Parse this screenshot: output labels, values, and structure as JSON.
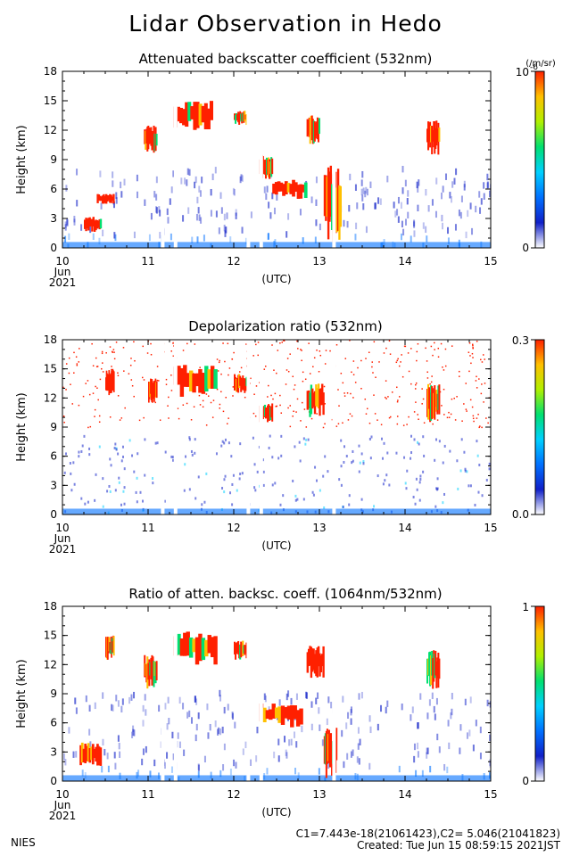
{
  "title": "Lidar Observation in Hedo",
  "footer": {
    "org": "NIES",
    "calib": "C1=7.443e-18(21061423),C2= 5.046(21041823)",
    "created": "Created: Tue Jun 15 08:59:15 2021JST"
  },
  "colors": {
    "cmap": [
      "#ffffff",
      "#1020c8",
      "#0070ff",
      "#00d0ff",
      "#00e070",
      "#b0f000",
      "#ffc000",
      "#ff2000"
    ]
  },
  "chart_data": [
    {
      "type": "heatmap",
      "title": "Attenuated backscatter coefficient (532nm)",
      "ylabel": "Height (km)",
      "xlabel": "(UTC)",
      "ylim": [
        0,
        18
      ],
      "xlim": [
        10,
        15
      ],
      "yticks": [
        "0",
        "3",
        "6",
        "9",
        "12",
        "15",
        "18"
      ],
      "xticks": [
        "10",
        "11",
        "12",
        "13",
        "14",
        "15"
      ],
      "date_label": [
        "Jun",
        "2021"
      ],
      "colorbar": {
        "min": "0",
        "max": "10",
        "max_exp": "-6",
        "unit": "(/m/sr)"
      },
      "cloud_layers": [
        {
          "t0": 10.25,
          "t1": 10.45,
          "h0": 1.6,
          "h1": 3.2
        },
        {
          "t0": 10.4,
          "t1": 10.6,
          "h0": 4.5,
          "h1": 5.5
        },
        {
          "t0": 10.95,
          "t1": 11.1,
          "h0": 9.5,
          "h1": 12.5
        },
        {
          "t0": 11.3,
          "t1": 11.75,
          "h0": 12.0,
          "h1": 15.0
        },
        {
          "t0": 12.0,
          "t1": 12.15,
          "h0": 12.5,
          "h1": 14.0
        },
        {
          "t0": 12.3,
          "t1": 12.45,
          "h0": 7.0,
          "h1": 9.5
        },
        {
          "t0": 12.45,
          "t1": 12.85,
          "h0": 5.0,
          "h1": 7.0
        },
        {
          "t0": 12.85,
          "t1": 13.0,
          "h0": 10.5,
          "h1": 13.5
        },
        {
          "t0": 13.05,
          "t1": 13.25,
          "h0": 0.3,
          "h1": 8.5
        },
        {
          "t0": 14.25,
          "t1": 14.4,
          "h0": 9.5,
          "h1": 13.0
        }
      ],
      "gaps": [
        11.15,
        11.3,
        12.15,
        12.3,
        13.15
      ],
      "series": []
    },
    {
      "type": "heatmap",
      "title": "Depolarization ratio (532nm)",
      "ylabel": "Height (km)",
      "xlabel": "(UTC)",
      "ylim": [
        0,
        18
      ],
      "xlim": [
        10,
        15
      ],
      "yticks": [
        "0",
        "3",
        "6",
        "9",
        "12",
        "15",
        "18"
      ],
      "xticks": [
        "10",
        "11",
        "12",
        "13",
        "14",
        "15"
      ],
      "date_label": [
        "Jun",
        "2021"
      ],
      "colorbar": {
        "min": "0.0",
        "max": "0.3"
      },
      "cloud_layers": [
        {
          "t0": 10.5,
          "t1": 10.6,
          "h0": 12.0,
          "h1": 15.0
        },
        {
          "t0": 11.0,
          "t1": 11.1,
          "h0": 11.5,
          "h1": 14.0
        },
        {
          "t0": 11.3,
          "t1": 11.8,
          "h0": 12.0,
          "h1": 15.5
        },
        {
          "t0": 12.0,
          "t1": 12.15,
          "h0": 12.5,
          "h1": 14.5
        },
        {
          "t0": 12.3,
          "t1": 12.45,
          "h0": 9.5,
          "h1": 11.5
        },
        {
          "t0": 12.85,
          "t1": 13.05,
          "h0": 10.0,
          "h1": 13.5
        },
        {
          "t0": 14.25,
          "t1": 14.4,
          "h0": 9.5,
          "h1": 13.5
        }
      ],
      "gaps": [
        11.15,
        11.3,
        12.15,
        12.3,
        13.15
      ],
      "series": []
    },
    {
      "type": "heatmap",
      "title": "Ratio of atten. backsc. coeff. (1064nm/532nm)",
      "ylabel": "Height (km)",
      "xlabel": "(UTC)",
      "ylim": [
        0,
        18
      ],
      "xlim": [
        10,
        15
      ],
      "yticks": [
        "0",
        "3",
        "6",
        "9",
        "12",
        "15",
        "18"
      ],
      "xticks": [
        "10",
        "11",
        "12",
        "13",
        "14",
        "15"
      ],
      "date_label": [
        "Jun",
        "2021"
      ],
      "colorbar": {
        "min": "0",
        "max": "1"
      },
      "cloud_layers": [
        {
          "t0": 10.2,
          "t1": 10.45,
          "h0": 1.5,
          "h1": 4.0
        },
        {
          "t0": 10.5,
          "t1": 10.6,
          "h0": 12.5,
          "h1": 15.0
        },
        {
          "t0": 10.95,
          "t1": 11.1,
          "h0": 9.5,
          "h1": 13.0
        },
        {
          "t0": 11.3,
          "t1": 11.8,
          "h0": 12.0,
          "h1": 15.5
        },
        {
          "t0": 12.0,
          "t1": 12.15,
          "h0": 12.5,
          "h1": 14.5
        },
        {
          "t0": 12.3,
          "t1": 12.8,
          "h0": 5.5,
          "h1": 8.0
        },
        {
          "t0": 12.85,
          "t1": 13.05,
          "h0": 10.5,
          "h1": 14.0
        },
        {
          "t0": 13.05,
          "t1": 13.2,
          "h0": 0.3,
          "h1": 5.5
        },
        {
          "t0": 14.25,
          "t1": 14.4,
          "h0": 9.5,
          "h1": 13.5
        }
      ],
      "gaps": [
        11.15,
        11.3,
        12.15,
        12.3,
        13.15
      ],
      "series": []
    }
  ]
}
